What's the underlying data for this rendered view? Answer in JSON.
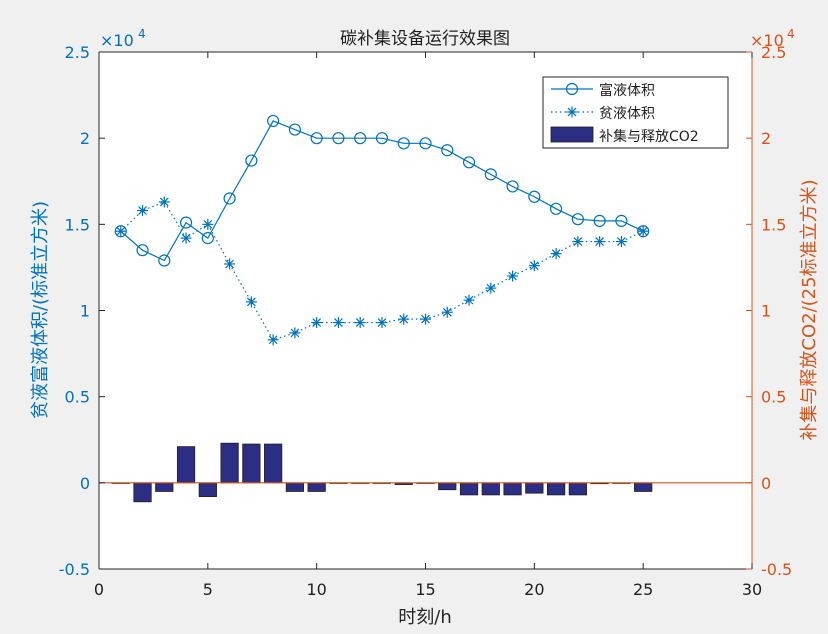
{
  "chart_data": {
    "type": "line",
    "title": "碳补集设备运行效果图",
    "xlabel": "时刻/h",
    "ylabel_left": "贫液富液体积/(标准立方米)",
    "ylabel_right": "补集与释放CO2/(25标准立方米)",
    "exponent_left": "×10",
    "exponent_right": "×10",
    "exponent_power": "4",
    "xlim": [
      0,
      30
    ],
    "ylim_left": [
      -0.5,
      2.5
    ],
    "ylim_right": [
      -0.5,
      2.5
    ],
    "y_scale_multiplier": 10000,
    "xticks": [
      "0",
      "5",
      "10",
      "15",
      "20",
      "25",
      "30"
    ],
    "yticks_left": [
      "-0.5",
      "0",
      "0.5",
      "1",
      "1.5",
      "2",
      "2.5"
    ],
    "yticks_right": [
      "-0.5",
      "0",
      "0.5",
      "1",
      "1.5",
      "2",
      "2.5"
    ],
    "grid": false,
    "legend_position": "top-right",
    "colors": {
      "line": "#0072bd",
      "bar": "#2c2e83",
      "right_axis": "#d95319",
      "axis": "#262626"
    },
    "x": [
      1,
      2,
      3,
      4,
      5,
      6,
      7,
      8,
      9,
      10,
      11,
      12,
      13,
      14,
      15,
      16,
      17,
      18,
      19,
      20,
      21,
      22,
      23,
      24,
      25
    ],
    "series": [
      {
        "name": "富液体积",
        "type": "line",
        "marker": "circle",
        "style": "solid",
        "values": [
          1.46,
          1.35,
          1.29,
          1.51,
          1.42,
          1.65,
          1.87,
          2.1,
          2.05,
          2.0,
          2.0,
          2.0,
          2.0,
          1.97,
          1.97,
          1.93,
          1.86,
          1.79,
          1.72,
          1.66,
          1.59,
          1.53,
          1.52,
          1.52,
          1.46
        ]
      },
      {
        "name": "贫液体积",
        "type": "line",
        "marker": "star",
        "style": "dotted",
        "values": [
          1.46,
          1.58,
          1.63,
          1.42,
          1.5,
          1.27,
          1.05,
          0.83,
          0.87,
          0.93,
          0.93,
          0.93,
          0.93,
          0.95,
          0.95,
          0.99,
          1.06,
          1.13,
          1.2,
          1.26,
          1.33,
          1.4,
          1.4,
          1.4,
          1.46
        ]
      },
      {
        "name": "补集与释放CO2",
        "type": "bar",
        "axis": "right",
        "values": [
          0,
          -0.11,
          -0.05,
          0.21,
          -0.08,
          0.23,
          0.225,
          0.225,
          -0.05,
          -0.05,
          0,
          0,
          0,
          -0.01,
          0,
          -0.04,
          -0.07,
          -0.07,
          -0.07,
          -0.06,
          -0.07,
          -0.07,
          -0.005,
          0,
          -0.05
        ]
      }
    ]
  }
}
